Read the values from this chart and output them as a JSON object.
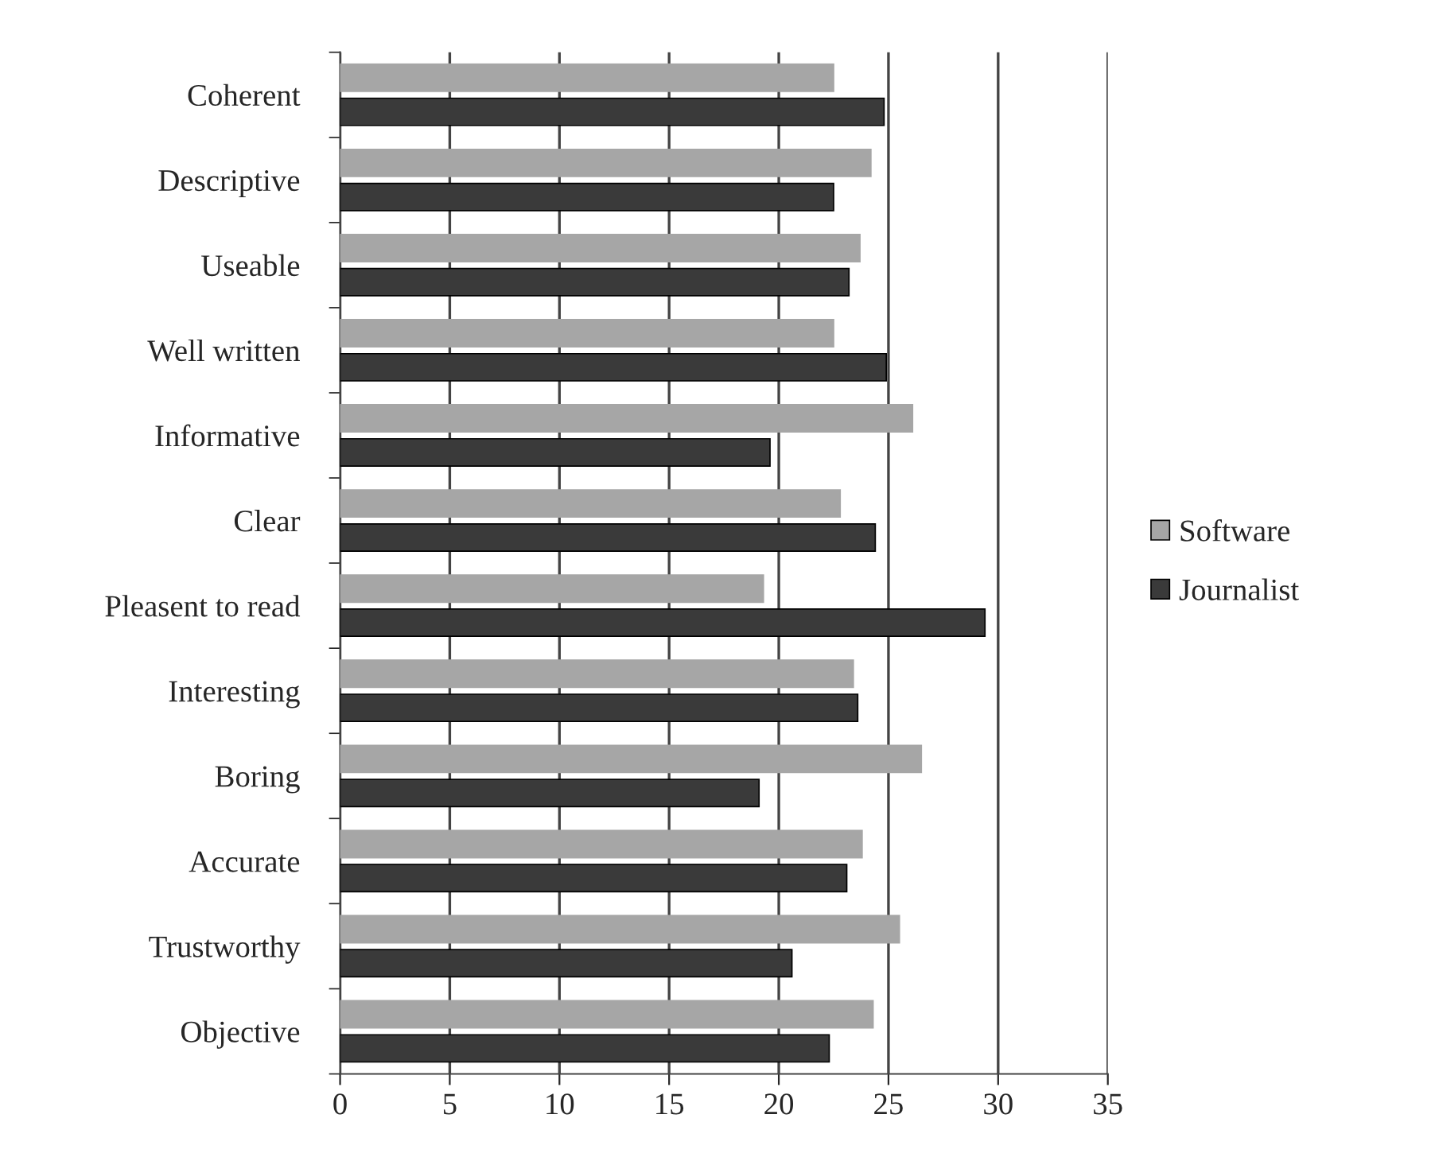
{
  "chart_data": {
    "type": "bar",
    "orientation": "horizontal",
    "categories": [
      "Coherent",
      "Descriptive",
      "Useable",
      "Well written",
      "Informative",
      "Clear",
      "Pleasent to read",
      "Interesting",
      "Boring",
      "Accurate",
      "Trustworthy",
      "Objective"
    ],
    "series": [
      {
        "name": "Software",
        "color": "#a6a6a6",
        "values": [
          22.5,
          24.2,
          23.7,
          22.5,
          26.1,
          22.8,
          19.3,
          23.4,
          26.5,
          23.8,
          25.5,
          24.3
        ]
      },
      {
        "name": "Journalist",
        "color": "#3a3a3a",
        "values": [
          24.8,
          22.5,
          23.2,
          24.9,
          19.6,
          24.4,
          29.4,
          23.6,
          19.1,
          23.1,
          20.6,
          22.3
        ]
      }
    ],
    "xlim": [
      0,
      35
    ],
    "xticks": [
      0,
      5,
      10,
      15,
      20,
      25,
      30,
      35
    ],
    "grid": "x",
    "legend": "right"
  }
}
